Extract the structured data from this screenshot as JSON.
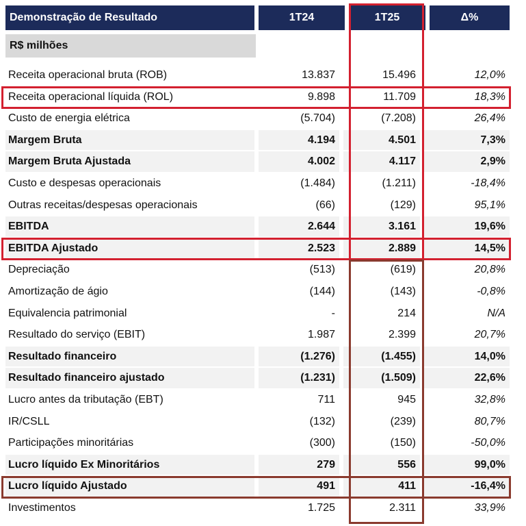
{
  "header": {
    "title": "Demonstração de Resultado",
    "col1": "1T24",
    "col2": "1T25",
    "col3": "Δ%"
  },
  "subheader": "R$ milhões",
  "rows": [
    {
      "label": "Receita operacional bruta (ROB)",
      "v1": "13.837",
      "v2": "15.496",
      "v3": "12,0%",
      "bold": false
    },
    {
      "label": "Receita operacional líquida (ROL)",
      "v1": "9.898",
      "v2": "11.709",
      "v3": "18,3%",
      "bold": false
    },
    {
      "label": "Custo de energia elétrica",
      "v1": "(5.704)",
      "v2": "(7.208)",
      "v3": "26,4%",
      "bold": false
    },
    {
      "label": "Margem Bruta",
      "v1": "4.194",
      "v2": "4.501",
      "v3": "7,3%",
      "bold": true
    },
    {
      "label": "Margem Bruta Ajustada",
      "v1": "4.002",
      "v2": "4.117",
      "v3": "2,9%",
      "bold": true
    },
    {
      "label": "Custo e despesas operacionais",
      "v1": "(1.484)",
      "v2": "(1.211)",
      "v3": "-18,4%",
      "bold": false
    },
    {
      "label": "Outras receitas/despesas operacionais",
      "v1": "(66)",
      "v2": "(129)",
      "v3": "95,1%",
      "bold": false
    },
    {
      "label": "EBITDA",
      "v1": "2.644",
      "v2": "3.161",
      "v3": "19,6%",
      "bold": true
    },
    {
      "label": "EBITDA Ajustado",
      "v1": "2.523",
      "v2": "2.889",
      "v3": "14,5%",
      "bold": true
    },
    {
      "label": "Depreciação",
      "v1": "(513)",
      "v2": "(619)",
      "v3": "20,8%",
      "bold": false
    },
    {
      "label": "Amortização de ágio",
      "v1": "(144)",
      "v2": "(143)",
      "v3": "-0,8%",
      "bold": false
    },
    {
      "label": "Equivalencia patrimonial",
      "v1": "-",
      "v2": "214",
      "v3": "N/A",
      "bold": false
    },
    {
      "label": "Resultado do serviço (EBIT)",
      "v1": "1.987",
      "v2": "2.399",
      "v3": "20,7%",
      "bold": false
    },
    {
      "label": "Resultado financeiro",
      "v1": "(1.276)",
      "v2": "(1.455)",
      "v3": "14,0%",
      "bold": true
    },
    {
      "label": "Resultado financeiro ajustado",
      "v1": "(1.231)",
      "v2": "(1.509)",
      "v3": "22,6%",
      "bold": true
    },
    {
      "label": "Lucro antes da tributação (EBT)",
      "v1": "711",
      "v2": "945",
      "v3": "32,8%",
      "bold": false
    },
    {
      "label": "IR/CSLL",
      "v1": "(132)",
      "v2": "(239)",
      "v3": "80,7%",
      "bold": false
    },
    {
      "label": "Participações minoritárias",
      "v1": "(300)",
      "v2": "(150)",
      "v3": "-50,0%",
      "bold": false
    },
    {
      "label": "Lucro líquido Ex Minoritários",
      "v1": "279",
      "v2": "556",
      "v3": "99,0%",
      "bold": true
    },
    {
      "label": "Lucro líquido Ajustado",
      "v1": "491",
      "v2": "411",
      "v3": "-16,4%",
      "bold": true
    },
    {
      "label": "Investimentos",
      "v1": "1.725",
      "v2": "2.311",
      "v3": "33,9%",
      "bold": false
    }
  ]
}
